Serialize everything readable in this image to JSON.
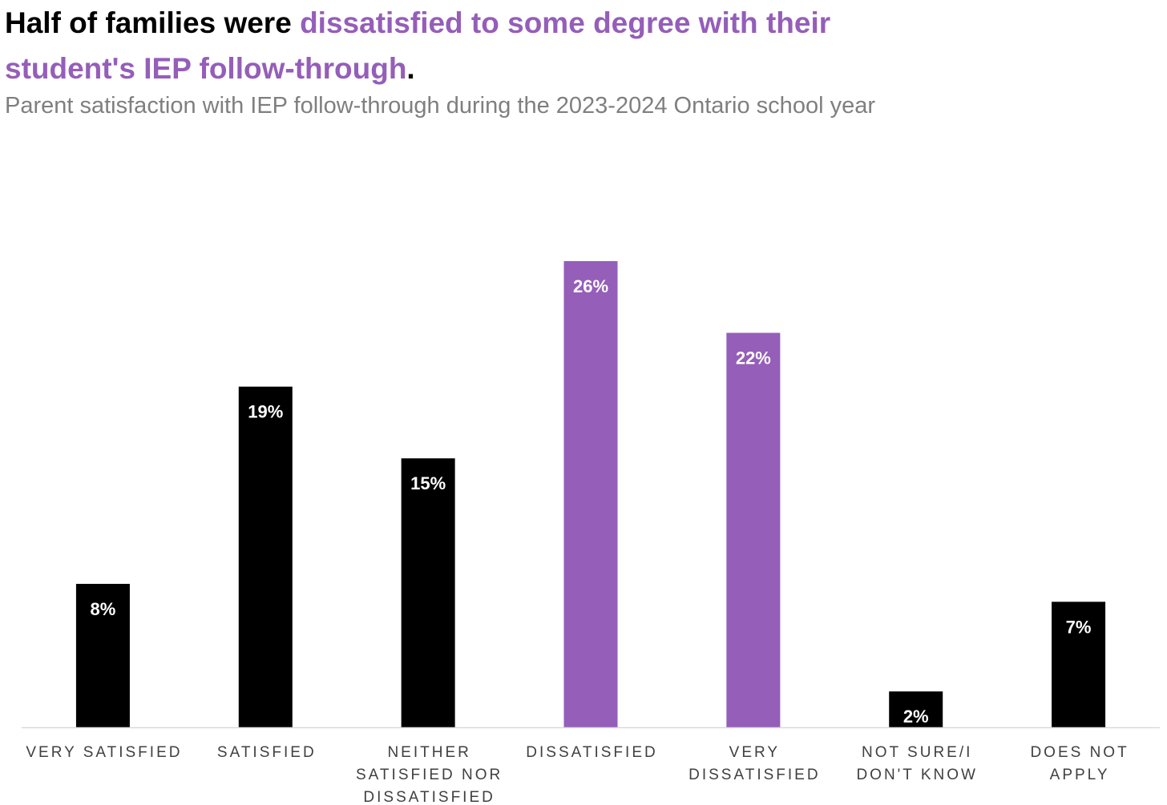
{
  "header": {
    "title_part1": "Half of families were ",
    "title_accent": "dissatisfied to some degree with their student's IEP follow-through",
    "title_part2": ".",
    "subtitle": "Parent satisfaction with IEP follow-through during the 2023-2024 Ontario school year"
  },
  "colors": {
    "default_bar": "#000000",
    "highlight_bar": "#955eb9",
    "axis_line": "#d9d9d9"
  },
  "chart_data": {
    "type": "bar",
    "title": "Half of families were dissatisfied to some degree with their student's IEP follow-through.",
    "subtitle": "Parent satisfaction with IEP follow-through during the 2023-2024 Ontario school year",
    "xlabel": "",
    "ylabel": "",
    "categories": [
      "VERY SATISFIED",
      "SATISFIED",
      "NEITHER SATISFIED NOR DISSATISFIED",
      "DISSATISFIED",
      "VERY DISSATISFIED",
      "NOT SURE/I DON'T KNOW",
      "DOES NOT APPLY"
    ],
    "category_label_lines": [
      [
        "VERY SATISFIED"
      ],
      [
        "SATISFIED"
      ],
      [
        "NEITHER",
        "SATISFIED NOR",
        "DISSATISFIED"
      ],
      [
        "DISSATISFIED"
      ],
      [
        "VERY",
        "DISSATISFIED"
      ],
      [
        "NOT SURE/I",
        "DON'T KNOW"
      ],
      [
        "DOES NOT",
        "APPLY"
      ]
    ],
    "values": [
      8,
      19,
      15,
      26,
      22,
      2,
      7
    ],
    "value_labels": [
      "8%",
      "19%",
      "15%",
      "26%",
      "22%",
      "2%",
      "7%"
    ],
    "highlighted": [
      false,
      false,
      false,
      true,
      true,
      false,
      false
    ],
    "ylim": [
      0,
      26
    ],
    "grid": false,
    "legend": "none"
  }
}
